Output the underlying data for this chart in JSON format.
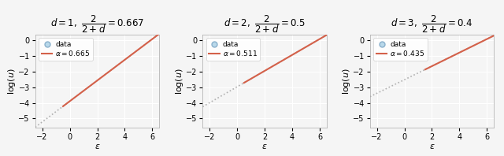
{
  "panels": [
    {
      "d": 1,
      "frac_val": "0.667",
      "alpha": 0.665,
      "split_eps": -0.5
    },
    {
      "d": 2,
      "frac_val": "0.5",
      "alpha": 0.511,
      "split_eps": 0.5
    },
    {
      "d": 3,
      "frac_val": "0.4",
      "alpha": 0.435,
      "split_eps": 1.5
    }
  ],
  "xlim": [
    -2.5,
    6.5
  ],
  "ylim": [
    -5.6,
    0.4
  ],
  "xticks": [
    -2,
    0,
    2,
    4,
    6
  ],
  "yticks": [
    0,
    -1,
    -2,
    -3,
    -4,
    -5
  ],
  "gray_color": "#b0b0b0",
  "orange_color": "#d4614a",
  "data_marker_color": "#b8d8ea",
  "data_marker_edge": "#8ab0cc",
  "background_color": "#f5f5f5",
  "figsize": [
    6.4,
    1.98
  ],
  "dpi": 100
}
